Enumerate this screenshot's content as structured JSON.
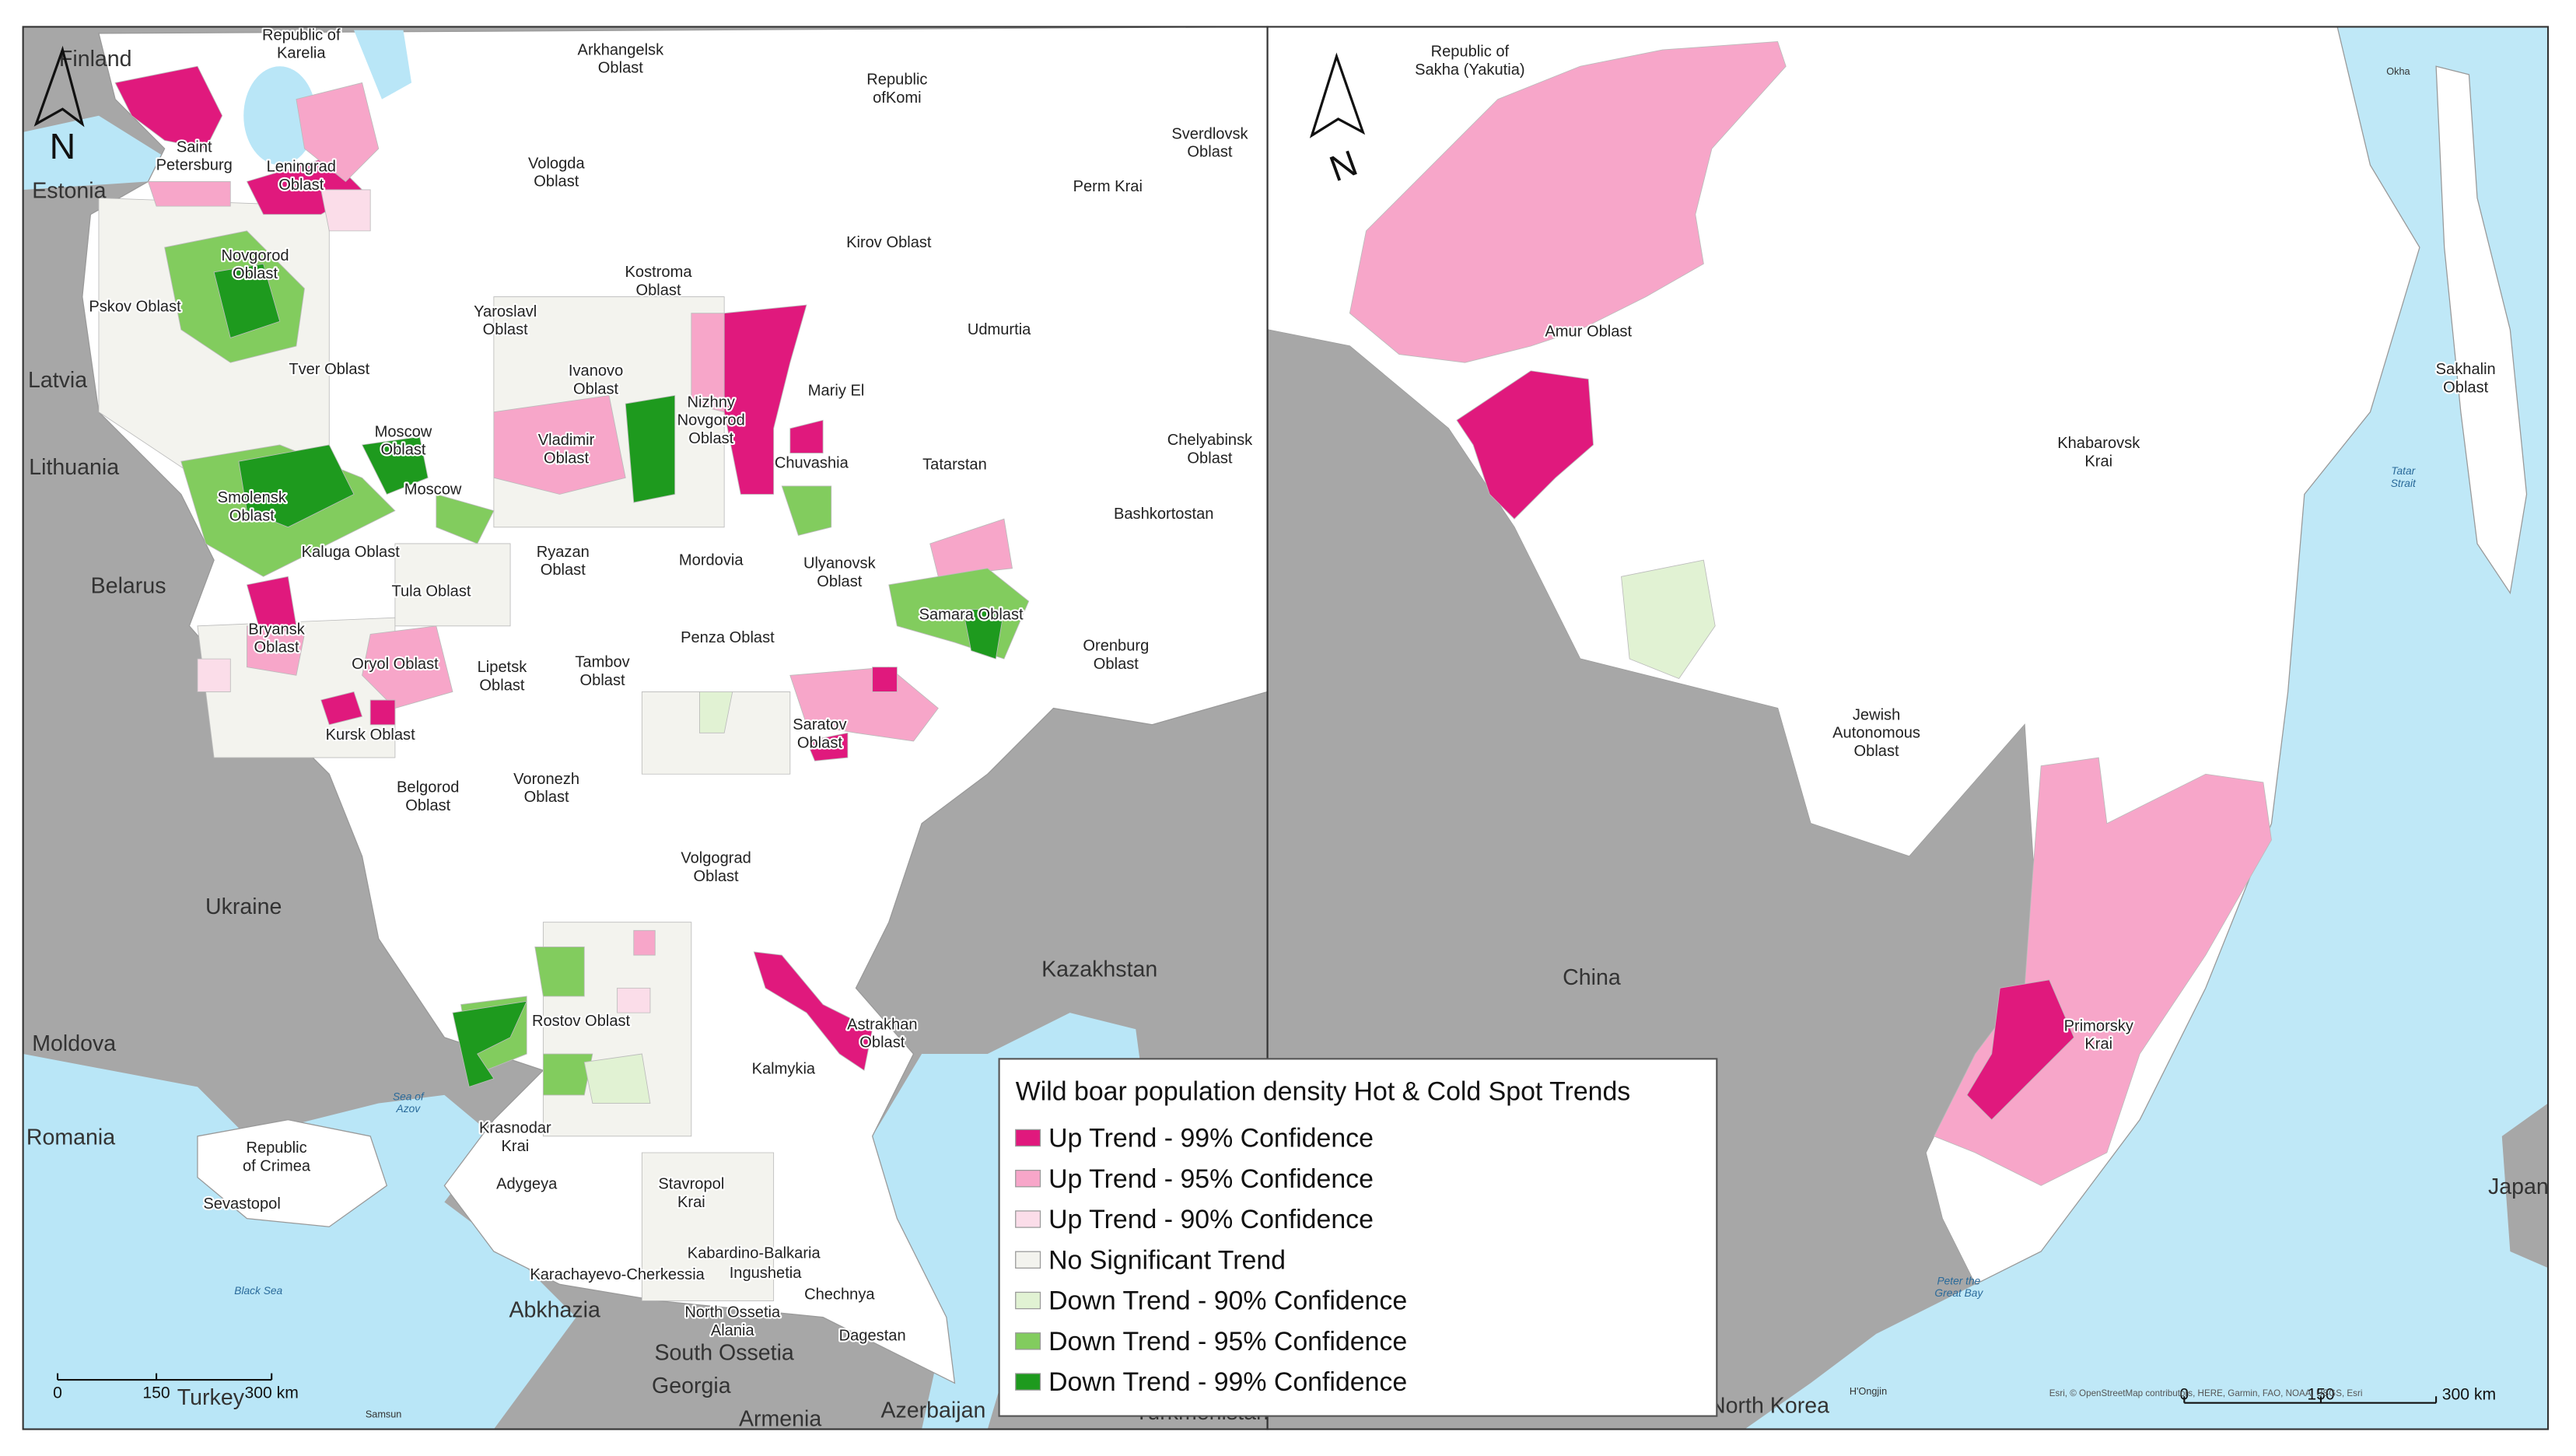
{
  "left_map": {
    "labels": [
      [
        "Finland"
      ],
      [
        "Republic of",
        "Karelia"
      ],
      [
        "Arkhangelsk",
        "Oblast"
      ],
      [
        "Republic",
        "ofKomi"
      ],
      [
        "Sverdlovsk",
        "Oblast"
      ],
      [
        "Saint",
        "Petersburg"
      ],
      [
        "Leningrad",
        "Oblast"
      ],
      [
        "Vologda",
        "Oblast"
      ],
      [
        "Perm Krai"
      ],
      [
        "Estonia"
      ],
      [
        "Kirov Oblast"
      ],
      [
        "Novgorod",
        "Oblast"
      ],
      [
        "Kostroma",
        "Oblast"
      ],
      [
        "Pskov Oblast"
      ],
      [
        "Yaroslavl",
        "Oblast"
      ],
      [
        "Udmurtia"
      ],
      [
        "Tver Oblast"
      ],
      [
        "Latvia"
      ],
      [
        "Ivanovo",
        "Oblast"
      ],
      [
        "Nizhny",
        "Novgorod",
        "Oblast"
      ],
      [
        "Mariy El"
      ],
      [
        "Moscow",
        "Oblast"
      ],
      [
        "Vladimir",
        "Oblast"
      ],
      [
        "Chelyabinsk",
        "Oblast"
      ],
      [
        "Lithuania"
      ],
      [
        "Chuvashia"
      ],
      [
        "Tatarstan"
      ],
      [
        "Moscow"
      ],
      [
        "Smolensk",
        "Oblast"
      ],
      [
        "Bashkortostan"
      ],
      [
        "Kaluga Oblast"
      ],
      [
        "Ryazan",
        "Oblast"
      ],
      [
        "Mordovia"
      ],
      [
        "Ulyanovsk",
        "Oblast"
      ],
      [
        "Belarus"
      ],
      [
        "Tula Oblast"
      ],
      [
        "Samara Oblast"
      ],
      [
        "Bryansk",
        "Oblast"
      ],
      [
        "Penza Oblast"
      ],
      [
        "Orenburg",
        "Oblast"
      ],
      [
        "Oryol Oblast"
      ],
      [
        "Tambov",
        "Oblast"
      ],
      [
        "Lipetsk",
        "Oblast"
      ],
      [
        "Saratov",
        "Oblast"
      ],
      [
        "Kursk Oblast"
      ],
      [
        "Voronezh",
        "Oblast"
      ],
      [
        "Belgorod",
        "Oblast"
      ],
      [
        "Volgograd",
        "Oblast"
      ],
      [
        "Ukraine"
      ],
      [
        "Kazakhstan"
      ],
      [
        "Rostov Oblast"
      ],
      [
        "Astrakhan",
        "Oblast"
      ],
      [
        "Moldova"
      ],
      [
        "Kalmykia"
      ],
      [
        "Sea of",
        "Azov"
      ],
      [
        "Krasnodar",
        "Krai"
      ],
      [
        "Romania"
      ],
      [
        "Republic",
        "of Crimea"
      ],
      [
        "Adygeya"
      ],
      [
        "Stavropol",
        "Krai"
      ],
      [
        "Sevastopol"
      ],
      [
        "Kabardino-Balkaria"
      ],
      [
        "Ingushetia"
      ],
      [
        "Karachayevo-Cherkessia"
      ],
      [
        "Black Sea"
      ],
      [
        "Chechnya"
      ],
      [
        "Abkhazia"
      ],
      [
        "North Ossetia",
        "Alania"
      ],
      [
        "Dagestan"
      ],
      [
        "South Ossetia"
      ],
      [
        "Georgia"
      ],
      [
        "Turkey"
      ],
      [
        "Samsun"
      ],
      [
        "Armenia"
      ],
      [
        "Azerbaijan"
      ],
      [
        "Turkmenistan"
      ]
    ],
    "north": "N",
    "scale_bar": [
      "0",
      "150",
      "300 km"
    ]
  },
  "right_map": {
    "labels": [
      [
        "Republic of",
        "Sakha (Yakutia)"
      ],
      [
        "Okha"
      ],
      [
        "Amur Oblast"
      ],
      [
        "Sakhalin",
        "Oblast"
      ],
      [
        "Khabarovsk",
        "Krai"
      ],
      [
        "Tatar",
        "Strait"
      ],
      [
        "Jewish",
        "Autonomous",
        "Oblast"
      ],
      [
        "China"
      ],
      [
        "Primorsky",
        "Krai"
      ],
      [
        "Japan"
      ],
      [
        "Peter the",
        "Great Bay"
      ],
      [
        "H'Ongjin"
      ],
      [
        "North Korea"
      ]
    ],
    "north": "N",
    "scale_bar": [
      "0",
      "150",
      "300 km"
    ],
    "attribution": "Esri, © OpenStreetMap contributors, HERE, Garmin, FAO, NOAA, USGS, Esri"
  },
  "legend": {
    "title": "Wild boar population density Hot & Cold Spot Trends",
    "entries": [
      {
        "label": "Up Trend - 99% Confidence",
        "color": "#e0197d"
      },
      {
        "label": "Up Trend - 95% Confidence",
        "color": "#f7a6c9"
      },
      {
        "label": "Up Trend - 90% Confidence",
        "color": "#fbdde9"
      },
      {
        "label": "No Significant Trend",
        "color": "#f3f3ee"
      },
      {
        "label": "Down Trend - 90% Confidence",
        "color": "#e1f2d3"
      },
      {
        "label": "Down Trend - 95% Confidence",
        "color": "#82cc5e"
      },
      {
        "label": "Down Trend - 99% Confidence",
        "color": "#1e9a1e"
      }
    ]
  }
}
